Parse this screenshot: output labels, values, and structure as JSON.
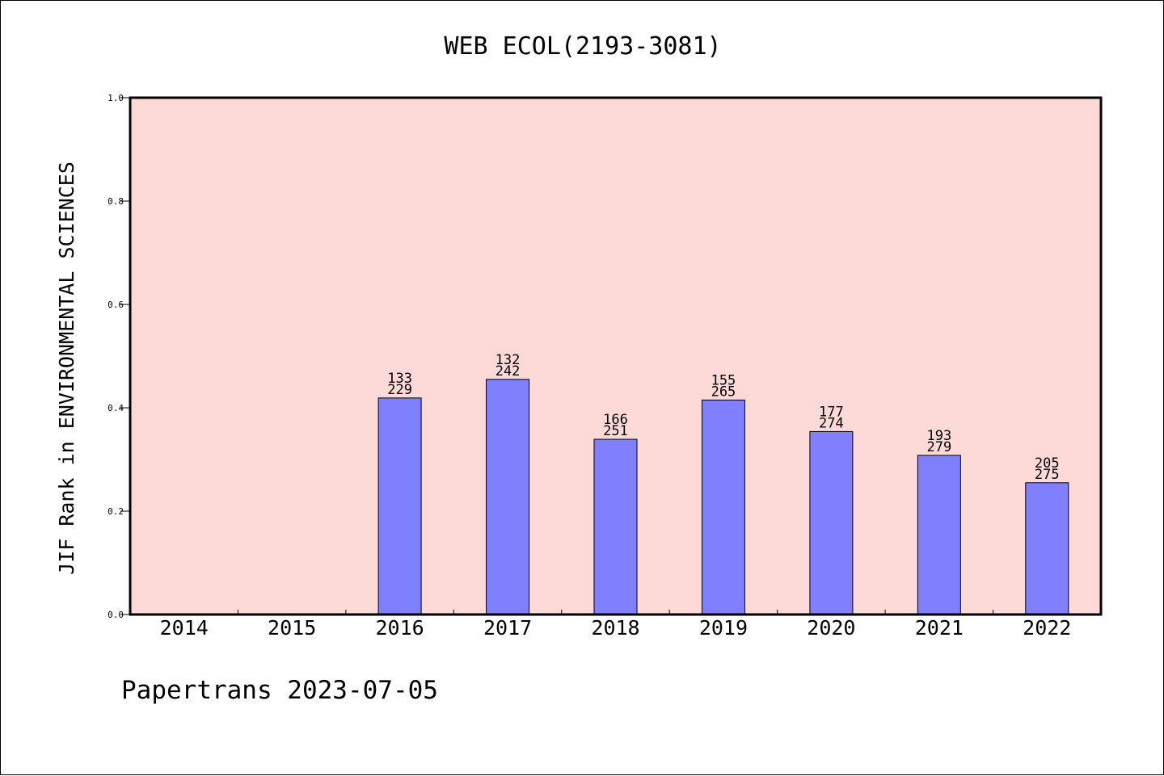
{
  "chart_data": {
    "type": "bar",
    "title": "WEB ECOL(2193-3081)",
    "ylabel": "JIF Rank in ENVIRONMENTAL SCIENCES",
    "xlabel": "",
    "ylim": [
      0,
      1.0
    ],
    "yticks": [
      "0.0",
      "0.2",
      "0.4",
      "0.6",
      "0.8",
      "1.0"
    ],
    "categories": [
      "2014",
      "2015",
      "2016",
      "2017",
      "2018",
      "2019",
      "2020",
      "2021",
      "2022"
    ],
    "values": [
      null,
      null,
      0.419,
      0.455,
      0.339,
      0.415,
      0.354,
      0.308,
      0.255
    ],
    "rank_labels": [
      null,
      null,
      {
        "rank": "133",
        "total": "229"
      },
      {
        "rank": "132",
        "total": "242"
      },
      {
        "rank": "166",
        "total": "251"
      },
      {
        "rank": "155",
        "total": "265"
      },
      {
        "rank": "177",
        "total": "274"
      },
      {
        "rank": "193",
        "total": "279"
      },
      {
        "rank": "205",
        "total": "275"
      }
    ],
    "plot_background": "#fddad7",
    "bar_color": "#8080ff",
    "grid": false,
    "legend": "none"
  },
  "footer": {
    "text": "Papertrans 2023-07-05"
  }
}
